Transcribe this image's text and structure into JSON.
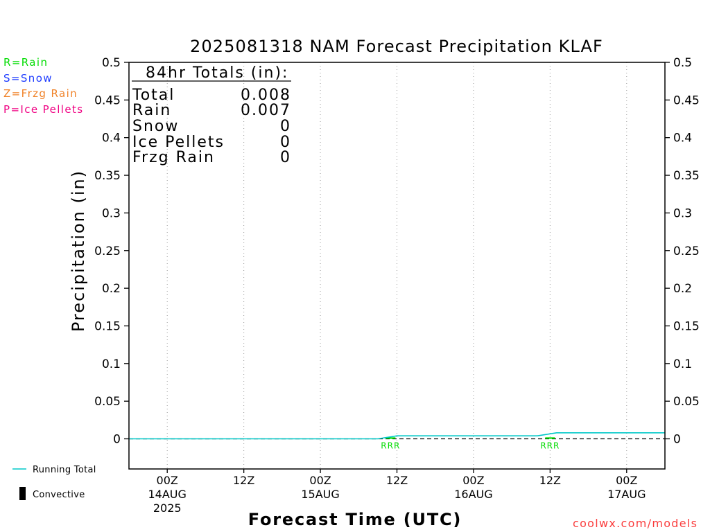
{
  "chart_data": {
    "type": "line",
    "title": "2025081318 NAM Forecast Precipitation KLAF",
    "xlabel": "Forecast Time (UTC)",
    "ylabel": "Precipitation (in)",
    "xlim": [
      "2025-08-13T18:00Z",
      "2025-08-17T06:00Z"
    ],
    "ylim": [
      -0.04,
      0.5
    ],
    "grid": {
      "vertical": true,
      "horizontal": false
    },
    "yticks": [
      {
        "value": 0,
        "label": "0"
      },
      {
        "value": 0.05,
        "label": "0.05"
      },
      {
        "value": 0.1,
        "label": "0.1"
      },
      {
        "value": 0.15,
        "label": "0.15"
      },
      {
        "value": 0.2,
        "label": "0.2"
      },
      {
        "value": 0.25,
        "label": "0.25"
      },
      {
        "value": 0.3,
        "label": "0.3"
      },
      {
        "value": 0.35,
        "label": "0.35"
      },
      {
        "value": 0.4,
        "label": "0.4"
      },
      {
        "value": 0.45,
        "label": "0.45"
      },
      {
        "value": 0.5,
        "label": "0.5"
      }
    ],
    "xticks": [
      {
        "x": "2025-08-14T00:00Z",
        "lines": [
          "00Z",
          "14AUG",
          "2025"
        ]
      },
      {
        "x": "2025-08-14T12:00Z",
        "lines": [
          "12Z"
        ]
      },
      {
        "x": "2025-08-15T00:00Z",
        "lines": [
          "00Z",
          "15AUG"
        ]
      },
      {
        "x": "2025-08-15T12:00Z",
        "lines": [
          "12Z"
        ]
      },
      {
        "x": "2025-08-16T00:00Z",
        "lines": [
          "00Z",
          "16AUG"
        ]
      },
      {
        "x": "2025-08-16T12:00Z",
        "lines": [
          "12Z"
        ]
      },
      {
        "x": "2025-08-17T00:00Z",
        "lines": [
          "00Z",
          "17AUG"
        ]
      }
    ],
    "series": [
      {
        "name": "Running Total",
        "kind": "line",
        "color": "#00c8c8",
        "points": [
          {
            "x": "2025-08-13T18:00Z",
            "y": 0
          },
          {
            "x": "2025-08-15T09:00Z",
            "y": 0
          },
          {
            "x": "2025-08-15T12:00Z",
            "y": 0.004
          },
          {
            "x": "2025-08-16T10:00Z",
            "y": 0.004
          },
          {
            "x": "2025-08-16T13:00Z",
            "y": 0.008
          },
          {
            "x": "2025-08-17T06:00Z",
            "y": 0.008
          }
        ]
      },
      {
        "name": "Rain",
        "kind": "bar",
        "color": "#00dc00",
        "points": [
          {
            "x": "2025-08-15T11:00Z",
            "y": 0.002
          },
          {
            "x": "2025-08-16T12:00Z",
            "y": 0.002
          }
        ]
      }
    ],
    "reference_line": {
      "y": 0,
      "color": "#000000"
    },
    "precip_type_labels": [
      {
        "x": "2025-08-15T11:00Z",
        "text": "RRR",
        "color": "#00dc00"
      },
      {
        "x": "2025-08-16T12:00Z",
        "text": "RRR",
        "color": "#00dc00"
      }
    ],
    "type_key": [
      {
        "label": "R=Rain",
        "color": "#00dc00"
      },
      {
        "label": "S=Snow",
        "color": "#1e3cff"
      },
      {
        "label": "Z=Frzg Rain",
        "color": "#f08228"
      },
      {
        "label": "P=Ice Pellets",
        "color": "#f00082"
      }
    ],
    "legend_placement": "bottom-left",
    "legend": [
      {
        "label": "Running Total",
        "color": "#00c8c8"
      },
      {
        "label": "Convective",
        "color": "#000000"
      }
    ],
    "totals": {
      "heading": "84hr Totals (in):",
      "rows": [
        {
          "label": "Total",
          "value": "0.008"
        },
        {
          "label": "Rain",
          "value": "0.007"
        },
        {
          "label": "Snow",
          "value": "0"
        },
        {
          "label": "Ice Pellets",
          "value": "0"
        },
        {
          "label": "Frzg Rain",
          "value": "0"
        }
      ]
    }
  },
  "footer": {
    "source": "coolwx.com/models",
    "color": "#fa3c3c"
  }
}
